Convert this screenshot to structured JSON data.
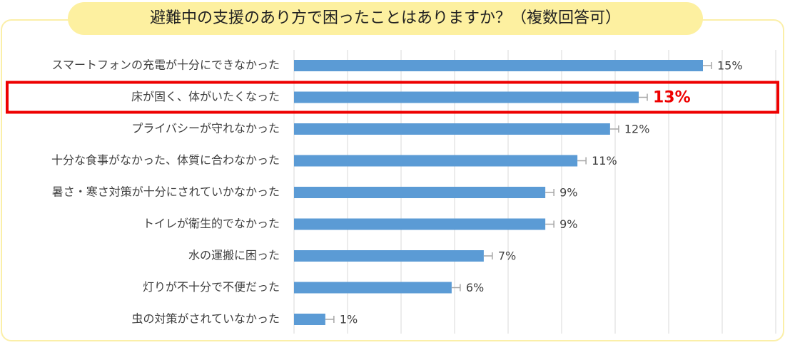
{
  "chart_data": {
    "type": "bar",
    "orientation": "horizontal",
    "title": "避難中の支援のあり方で困ったことはありますか？（複数回答可）",
    "categories": [
      "スマートフォンの充電が十分にできなかった",
      "床が固く、体がいたくなった",
      "プライバシーが守れなかった",
      "十分な食事がなかった、体質に合わなかった",
      "暑さ・寒さ対策が十分にされていかなかった",
      "トイレが衛生的でなかった",
      "水の運搬に困った",
      "灯りが不十分で不便だった",
      "虫の対策がされていなかった"
    ],
    "values": [
      15.28,
      12.88,
      11.81,
      10.59,
      9.39,
      9.39,
      7.09,
      5.89,
      1.17
    ],
    "value_labels": [
      "15%",
      "13%",
      "12%",
      "11%",
      "9%",
      "9%",
      "7%",
      "6%",
      "1%"
    ],
    "color": "#5b9bd5",
    "xlim": [
      0,
      18
    ],
    "xticks": [
      0,
      2,
      4,
      6,
      8,
      10,
      12,
      14,
      16,
      18
    ],
    "grid": true,
    "highlight": 1,
    "highlight_color": "#ee0000"
  }
}
